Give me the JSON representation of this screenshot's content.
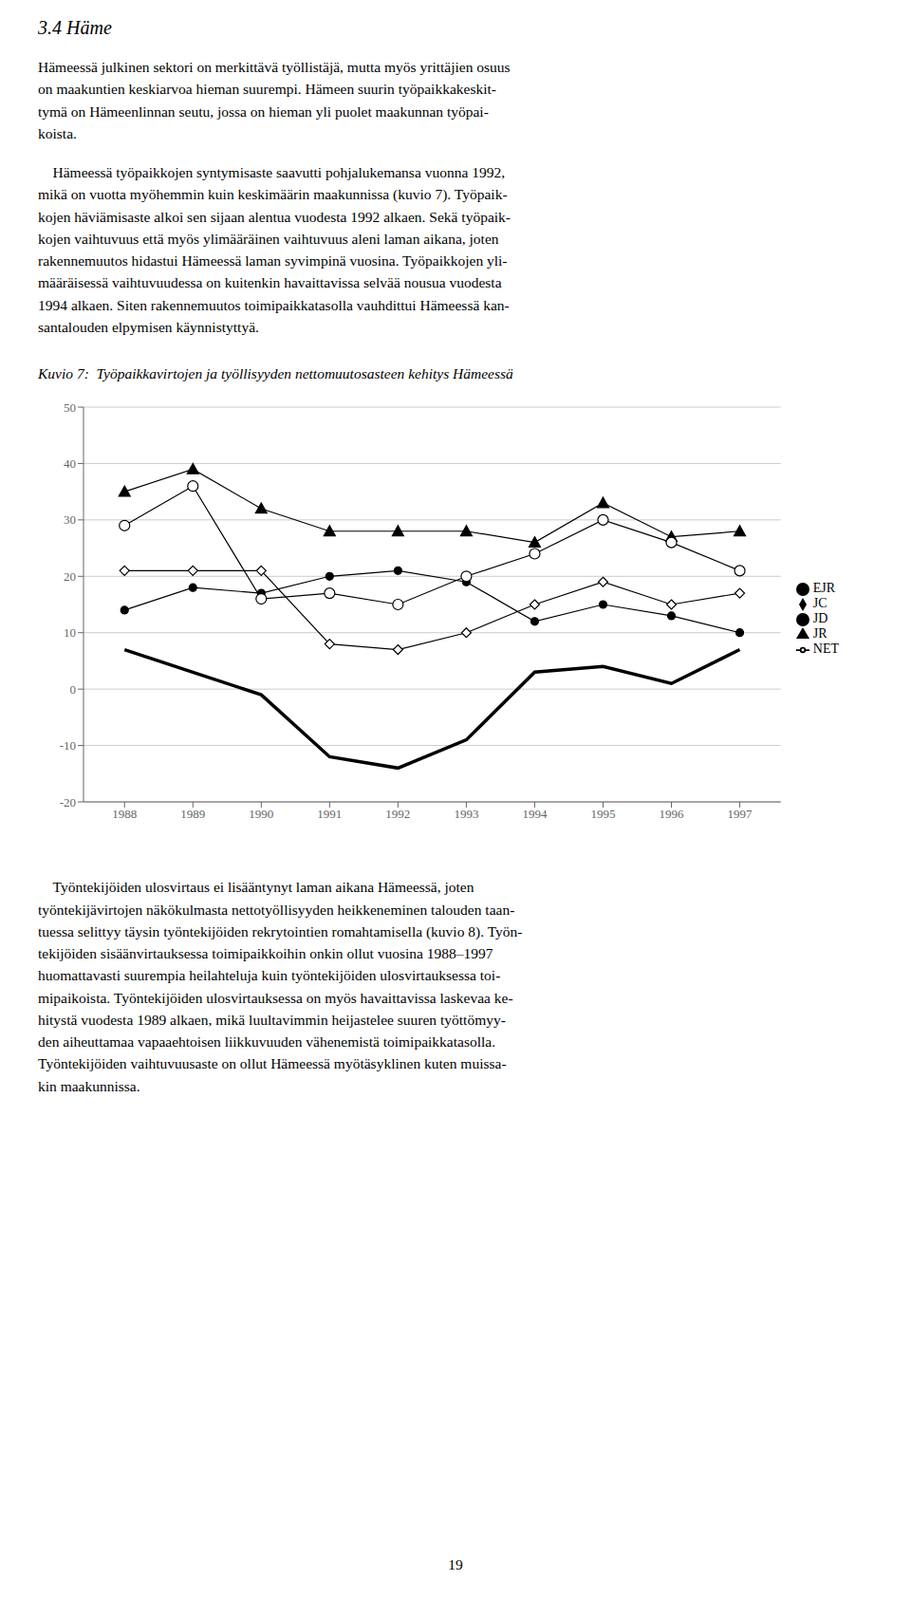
{
  "chart_data": {
    "type": "line",
    "title": "Kuvio 7:  Työpaikkavirtojen ja työllisyyden nettomuutosasteen kehitys Hämeessä",
    "annotations": [
      "3.4  Häme",
      "Hämeessä julkinen sektori on merkittävä työllistäjä, mutta myös yrittäjien osuus\non maakuntien keskiarvoa hieman suurempi. Hämeen suurin työpaikkakeskit-\ntymä on Hämeenlinnan seutu, jossa on hieman yli puolet maakunnan työpai-\nkoista.",
      "    Hämeessä työpaikkojen syntymisaste saavutti pohjalukemansa vuonna 1992,\nmikä on vuotta myöhemmin kuin keskimäärin maakunnissa (kuvio 7). Työpaik-\nkojen häviämisaste alkoi sen sijaan alentua vuodesta 1992 alkaen. Sekä työpaik-\nkojen vaihtuvuus että myös ylimääräinen vaihtuvuus aleni laman aikana, joten\nrakennemuutos hidastui Hämeessä laman syvimpinä vuosina. Työpaikkojen yli-\nmääräisessä vaihtuvuudessa on kuitenkin havaittavissa selvää nousua vuodesta\n1994 alkaen. Siten rakennemuutos toimipaikkatasolla vauhdittui Hämeessä kan-\nsantalouden elpymisen käynnistyttyä.",
      "    Työntekijöiden ulosvirtaus ei lisääntynyt laman aikana Hämeessä, joten\ntyöntekijävirtojen näkökulmasta nettotyöllisyyden heikkeneminen talouden taan-\ntuessa selittyy täysin työntekijöiden rekrytointien romahtamisella (kuvio 8). Työn-\ntekijöiden sisäänvirtauksessa toimipaikkoihin onkin ollut vuosina 1988–1997\nhuomattavasti suurempia heilahteluja kuin työntekijöiden ulosvirtauksessa toi-\nmipaikoista. Työntekijöiden ulosvirtauksessa on myös havaittavissa laskevaa ke-\nhitystä vuodesta 1989 alkaen, mikä luultavimmin heijastelee suuren työttömyy-\nden aiheuttamaa vapaaehtoisen liikkuvuuden vähenemistä toimipaikkatasolla.\nTyöntekijöiden vaihtuvuusaste on ollut Hämeessä myötäsyklinen kuten muissa-\nkin maakunnissa.",
      "19"
    ],
    "x": [
      1988,
      1989,
      1990,
      1991,
      1992,
      1993,
      1994,
      1995,
      1996,
      1997
    ],
    "series": [
      {
        "name": "JC",
        "color": "#000000",
        "marker": "open_diamond",
        "line_style": "solid",
        "values": [
          21,
          21,
          21,
          8,
          7,
          10,
          15,
          19,
          15,
          17
        ]
      },
      {
        "name": "JD",
        "color": "#000000",
        "marker": "circle",
        "line_style": "solid",
        "values": [
          14,
          18,
          17,
          20,
          21,
          19,
          12,
          15,
          13,
          10
        ]
      },
      {
        "name": "NET",
        "color": "#000000",
        "marker": "none",
        "line_style": "thick",
        "values": [
          7,
          3,
          -1,
          -12,
          -14,
          -9,
          3,
          4,
          1,
          7
        ]
      },
      {
        "name": "JR",
        "color": "#000000",
        "marker": "triangle",
        "line_style": "solid",
        "values": [
          35,
          39,
          32,
          28,
          28,
          28,
          26,
          33,
          27,
          28
        ]
      },
      {
        "name": "EJR",
        "color": "#000000",
        "marker": "open_circle",
        "line_style": "solid",
        "values": [
          29,
          36,
          16,
          17,
          15,
          20,
          24,
          30,
          26,
          21
        ]
      }
    ],
    "xlim": [
      1987.4,
      1997.6
    ],
    "xticks": [
      1988,
      1989,
      1990,
      1991,
      1992,
      1993,
      1994,
      1995,
      1996,
      1997
    ],
    "ylim": [
      -20,
      50
    ],
    "yticks": [
      -20,
      -10,
      0,
      10,
      20,
      30,
      40,
      50
    ],
    "grid": true,
    "legend": "right"
  }
}
